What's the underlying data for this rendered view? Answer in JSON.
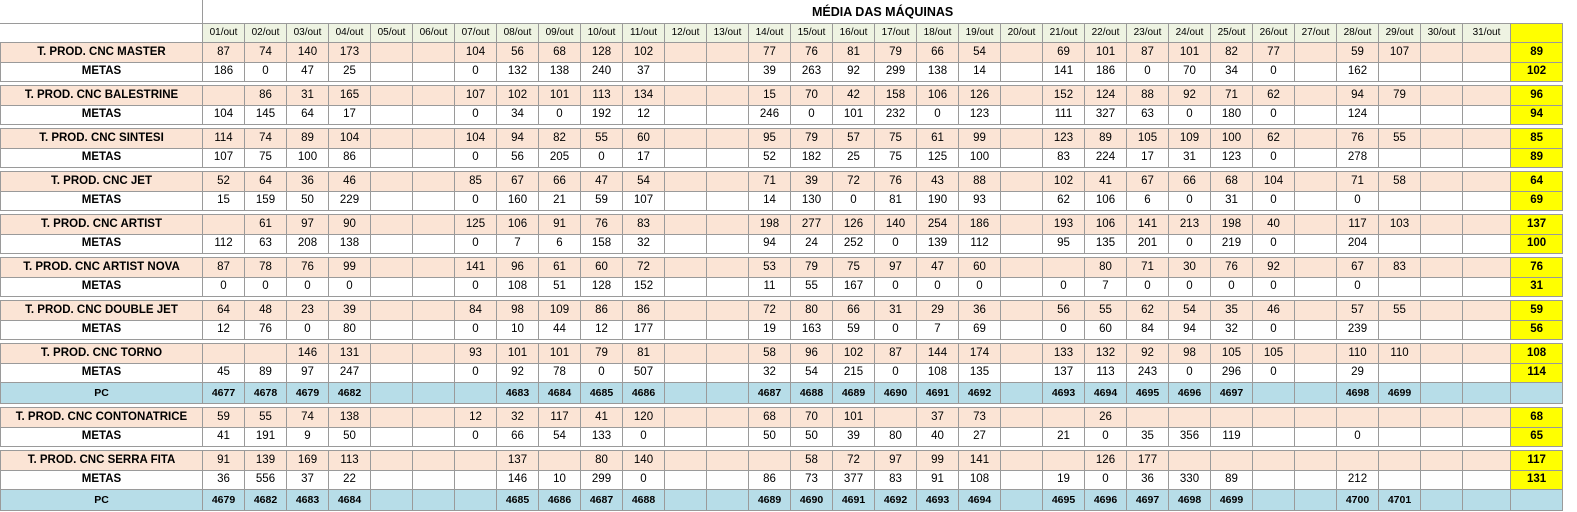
{
  "title": "MÉDIA DAS MÁQUINAS",
  "days": [
    "01/out",
    "02/out",
    "03/out",
    "04/out",
    "05/out",
    "06/out",
    "07/out",
    "08/out",
    "09/out",
    "10/out",
    "11/out",
    "12/out",
    "13/out",
    "14/out",
    "15/out",
    "16/out",
    "17/out",
    "18/out",
    "19/out",
    "20/out",
    "21/out",
    "22/out",
    "23/out",
    "24/out",
    "25/out",
    "26/out",
    "27/out",
    "28/out",
    "29/out",
    "30/out",
    "31/out"
  ],
  "rows": [
    {
      "type": "prod",
      "label": "T. PROD. CNC MASTER",
      "values": [
        "87",
        "74",
        "140",
        "173",
        "",
        "",
        "104",
        "56",
        "68",
        "128",
        "102",
        "",
        "",
        "77",
        "76",
        "81",
        "79",
        "66",
        "54",
        "",
        "69",
        "101",
        "87",
        "101",
        "82",
        "77",
        "",
        "59",
        "107",
        "",
        ""
      ],
      "avg": "89"
    },
    {
      "type": "meta",
      "label": "METAS",
      "values": [
        "186",
        "0",
        "47",
        "25",
        "",
        "",
        "0",
        "132",
        "138",
        "240",
        "37",
        "",
        "",
        "39",
        "263",
        "92",
        "299",
        "138",
        "14",
        "",
        "141",
        "186",
        "0",
        "70",
        "34",
        "0",
        "",
        "162",
        "",
        "",
        ""
      ],
      "avg": "102"
    },
    {
      "type": "gap"
    },
    {
      "type": "prod",
      "label": "T. PROD. CNC BALESTRINE",
      "values": [
        "",
        "86",
        "31",
        "165",
        "",
        "",
        "107",
        "102",
        "101",
        "113",
        "134",
        "",
        "",
        "15",
        "70",
        "42",
        "158",
        "106",
        "126",
        "",
        "152",
        "124",
        "88",
        "92",
        "71",
        "62",
        "",
        "94",
        "79",
        "",
        ""
      ],
      "avg": "96"
    },
    {
      "type": "meta",
      "label": "METAS",
      "values": [
        "104",
        "145",
        "64",
        "17",
        "",
        "",
        "0",
        "34",
        "0",
        "192",
        "12",
        "",
        "",
        "246",
        "0",
        "101",
        "232",
        "0",
        "123",
        "",
        "111",
        "327",
        "63",
        "0",
        "180",
        "0",
        "",
        "124",
        "",
        "",
        ""
      ],
      "avg": "94"
    },
    {
      "type": "gap"
    },
    {
      "type": "prod",
      "label": "T. PROD. CNC SINTESI",
      "values": [
        "114",
        "74",
        "89",
        "104",
        "",
        "",
        "104",
        "94",
        "82",
        "55",
        "60",
        "",
        "",
        "95",
        "79",
        "57",
        "75",
        "61",
        "99",
        "",
        "123",
        "89",
        "105",
        "109",
        "100",
        "62",
        "",
        "76",
        "55",
        "",
        ""
      ],
      "avg": "85"
    },
    {
      "type": "meta",
      "label": "METAS",
      "values": [
        "107",
        "75",
        "100",
        "86",
        "",
        "",
        "0",
        "56",
        "205",
        "0",
        "17",
        "",
        "",
        "52",
        "182",
        "25",
        "75",
        "125",
        "100",
        "",
        "83",
        "224",
        "17",
        "31",
        "123",
        "0",
        "",
        "278",
        "",
        "",
        ""
      ],
      "avg": "89"
    },
    {
      "type": "gap"
    },
    {
      "type": "prod",
      "label": "T. PROD. CNC JET",
      "values": [
        "52",
        "64",
        "36",
        "46",
        "",
        "",
        "85",
        "67",
        "66",
        "47",
        "54",
        "",
        "",
        "71",
        "39",
        "72",
        "76",
        "43",
        "88",
        "",
        "102",
        "41",
        "67",
        "66",
        "68",
        "104",
        "",
        "71",
        "58",
        "",
        ""
      ],
      "avg": "64"
    },
    {
      "type": "meta",
      "label": "METAS",
      "values": [
        "15",
        "159",
        "50",
        "229",
        "",
        "",
        "0",
        "160",
        "21",
        "59",
        "107",
        "",
        "",
        "14",
        "130",
        "0",
        "81",
        "190",
        "93",
        "",
        "62",
        "106",
        "6",
        "0",
        "31",
        "0",
        "",
        "0",
        "",
        "",
        ""
      ],
      "avg": "69"
    },
    {
      "type": "gap"
    },
    {
      "type": "prod",
      "label": "T. PROD. CNC ARTIST",
      "values": [
        "",
        "61",
        "97",
        "90",
        "",
        "",
        "125",
        "106",
        "91",
        "76",
        "83",
        "",
        "",
        "198",
        "277",
        "126",
        "140",
        "254",
        "186",
        "",
        "193",
        "106",
        "141",
        "213",
        "198",
        "40",
        "",
        "117",
        "103",
        "",
        ""
      ],
      "avg": "137"
    },
    {
      "type": "meta",
      "label": "METAS",
      "values": [
        "112",
        "63",
        "208",
        "138",
        "",
        "",
        "0",
        "7",
        "6",
        "158",
        "32",
        "",
        "",
        "94",
        "24",
        "252",
        "0",
        "139",
        "112",
        "",
        "95",
        "135",
        "201",
        "0",
        "219",
        "0",
        "",
        "204",
        "",
        "",
        ""
      ],
      "avg": "100"
    },
    {
      "type": "gap"
    },
    {
      "type": "prod",
      "label": "T. PROD. CNC ARTIST NOVA",
      "values": [
        "87",
        "78",
        "76",
        "99",
        "",
        "",
        "141",
        "96",
        "61",
        "60",
        "72",
        "",
        "",
        "53",
        "79",
        "75",
        "97",
        "47",
        "60",
        "",
        "",
        "80",
        "71",
        "30",
        "76",
        "92",
        "",
        "67",
        "83",
        "",
        ""
      ],
      "avg": "76"
    },
    {
      "type": "meta",
      "label": "METAS",
      "values": [
        "0",
        "0",
        "0",
        "0",
        "",
        "",
        "0",
        "108",
        "51",
        "128",
        "152",
        "",
        "",
        "11",
        "55",
        "167",
        "0",
        "0",
        "0",
        "",
        "0",
        "7",
        "0",
        "0",
        "0",
        "0",
        "",
        "0",
        "",
        "",
        ""
      ],
      "avg": "31"
    },
    {
      "type": "gap"
    },
    {
      "type": "prod",
      "label": "T. PROD. CNC DOUBLE JET",
      "values": [
        "64",
        "48",
        "23",
        "39",
        "",
        "",
        "84",
        "98",
        "109",
        "86",
        "86",
        "",
        "",
        "72",
        "80",
        "66",
        "31",
        "29",
        "36",
        "",
        "56",
        "55",
        "62",
        "54",
        "35",
        "46",
        "",
        "57",
        "55",
        "",
        ""
      ],
      "avg": "59"
    },
    {
      "type": "meta",
      "label": "METAS",
      "values": [
        "12",
        "76",
        "0",
        "80",
        "",
        "",
        "0",
        "10",
        "44",
        "12",
        "177",
        "",
        "",
        "19",
        "163",
        "59",
        "0",
        "7",
        "69",
        "",
        "0",
        "60",
        "84",
        "94",
        "32",
        "0",
        "",
        "239",
        "",
        "",
        ""
      ],
      "avg": "56"
    },
    {
      "type": "gap"
    },
    {
      "type": "prod",
      "label": "T. PROD. CNC TORNO",
      "values": [
        "",
        "",
        "146",
        "131",
        "",
        "",
        "93",
        "101",
        "101",
        "79",
        "81",
        "",
        "",
        "58",
        "96",
        "102",
        "87",
        "144",
        "174",
        "",
        "133",
        "132",
        "92",
        "98",
        "105",
        "105",
        "",
        "110",
        "110",
        "",
        ""
      ],
      "avg": "108"
    },
    {
      "type": "meta",
      "label": "METAS",
      "values": [
        "45",
        "89",
        "97",
        "247",
        "",
        "",
        "0",
        "92",
        "78",
        "0",
        "507",
        "",
        "",
        "32",
        "54",
        "215",
        "0",
        "108",
        "135",
        "",
        "137",
        "113",
        "243",
        "0",
        "296",
        "0",
        "",
        "29",
        "",
        "",
        ""
      ],
      "avg": "114"
    },
    {
      "type": "pc",
      "label": "PC",
      "values": [
        "4677",
        "4678",
        "4679",
        "4682",
        "",
        "",
        "",
        "4683",
        "4684",
        "4685",
        "4686",
        "",
        "",
        "4687",
        "4688",
        "4689",
        "4690",
        "4691",
        "4692",
        "",
        "4693",
        "4694",
        "4695",
        "4696",
        "4697",
        "",
        "",
        "4698",
        "4699",
        "",
        ""
      ],
      "avg": ""
    },
    {
      "type": "gap"
    },
    {
      "type": "prod",
      "label": "T. PROD. CNC CONTONATRICE",
      "values": [
        "59",
        "55",
        "74",
        "138",
        "",
        "",
        "12",
        "32",
        "117",
        "41",
        "120",
        "",
        "",
        "68",
        "70",
        "101",
        "",
        "37",
        "73",
        "",
        "",
        "26",
        "",
        "",
        "",
        "",
        "",
        "",
        "",
        "",
        ""
      ],
      "avg": "68"
    },
    {
      "type": "meta",
      "label": "METAS",
      "values": [
        "41",
        "191",
        "9",
        "50",
        "",
        "",
        "0",
        "66",
        "54",
        "133",
        "0",
        "",
        "",
        "50",
        "50",
        "39",
        "80",
        "40",
        "27",
        "",
        "21",
        "0",
        "35",
        "356",
        "119",
        "",
        "",
        "0",
        "",
        "",
        ""
      ],
      "avg": "65"
    },
    {
      "type": "gap"
    },
    {
      "type": "prod",
      "label": "T. PROD. CNC SERRA FITA",
      "values": [
        "91",
        "139",
        "169",
        "113",
        "",
        "",
        "",
        "137",
        "",
        "80",
        "140",
        "",
        "",
        "",
        "58",
        "72",
        "97",
        "99",
        "141",
        "",
        "",
        "126",
        "177",
        "",
        "",
        "",
        "",
        "",
        "",
        "",
        ""
      ],
      "avg": "117"
    },
    {
      "type": "meta",
      "label": "METAS",
      "values": [
        "36",
        "556",
        "37",
        "22",
        "",
        "",
        "",
        "146",
        "10",
        "299",
        "0",
        "",
        "",
        "86",
        "73",
        "377",
        "83",
        "91",
        "108",
        "",
        "19",
        "0",
        "36",
        "330",
        "89",
        "",
        "",
        "212",
        "",
        "",
        ""
      ],
      "avg": "131"
    },
    {
      "type": "pc",
      "label": "PC",
      "values": [
        "4679",
        "4682",
        "4683",
        "4684",
        "",
        "",
        "",
        "4685",
        "4686",
        "4687",
        "4688",
        "",
        "",
        "4689",
        "4690",
        "4691",
        "4692",
        "4693",
        "4694",
        "",
        "4695",
        "4696",
        "4697",
        "4698",
        "4699",
        "",
        "",
        "4700",
        "4701",
        "",
        ""
      ],
      "avg": ""
    }
  ]
}
